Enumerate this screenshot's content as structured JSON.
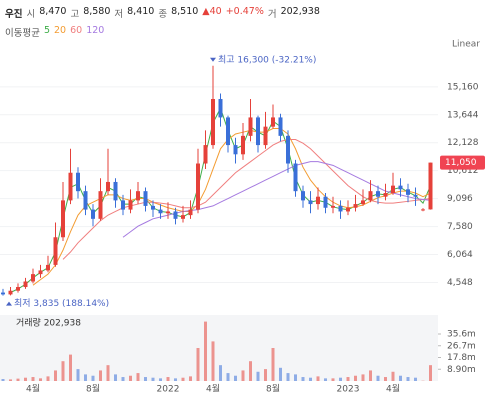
{
  "chart_data": {
    "type": "candlestick",
    "name": "우진",
    "quote": [
      {
        "label": "시",
        "value": 8470,
        "value_label": "8,470"
      },
      {
        "label": "고",
        "value": 8580,
        "value_label": "8,580"
      },
      {
        "label": "저",
        "value": 8410,
        "value_label": "8,410"
      },
      {
        "label": "종",
        "value": 8510,
        "value_label": "8,510"
      }
    ],
    "change": [
      {
        "value": 40,
        "label": "▲40"
      },
      {
        "value": 0.47,
        "label": "+0.47%"
      }
    ],
    "change_color": "#e5413a",
    "quote_volume": {
      "label": "거",
      "value": 202938,
      "value_label": "202,938"
    },
    "ma_label": "이동평균",
    "scale_label": "Linear",
    "categories": [
      null,
      null,
      null,
      null,
      "4월",
      null,
      null,
      null,
      null,
      null,
      null,
      null,
      "8월",
      null,
      null,
      null,
      null,
      null,
      null,
      null,
      null,
      null,
      "2022",
      null,
      null,
      null,
      null,
      null,
      "4월",
      null,
      null,
      null,
      null,
      null,
      null,
      null,
      "8월",
      null,
      null,
      null,
      null,
      null,
      null,
      null,
      null,
      null,
      "2023",
      null,
      null,
      null,
      null,
      null,
      "4월",
      null,
      null,
      null,
      null,
      null
    ],
    "open": [
      4000,
      3900,
      4100,
      4300,
      4600,
      5000,
      5200,
      5500,
      7000,
      9000,
      10500,
      9500,
      8500,
      8000,
      9500,
      10000,
      9000,
      8500,
      9000,
      9500,
      8700,
      8500,
      8300,
      8400,
      8000,
      8200,
      8500,
      11000,
      12000,
      14500,
      13500,
      12000,
      11500,
      12500,
      13500,
      12000,
      13000,
      13500,
      12500,
      11000,
      9500,
      9000,
      8800,
      9200,
      8600,
      8700,
      8400,
      8600,
      8800,
      9000,
      9500,
      9200,
      9400,
      9800,
      9600,
      9300,
      8470,
      8510
    ],
    "high": [
      4200,
      4300,
      4500,
      4800,
      5300,
      5500,
      6000,
      7800,
      10000,
      11800,
      10800,
      9800,
      8800,
      10200,
      11800,
      10200,
      9300,
      9600,
      10000,
      9700,
      9000,
      8800,
      8900,
      8600,
      8700,
      9000,
      11800,
      12800,
      16300,
      14800,
      13600,
      12400,
      13200,
      14500,
      13600,
      13800,
      14200,
      13700,
      12800,
      11200,
      9800,
      9500,
      9700,
      9400,
      9200,
      9000,
      9000,
      9300,
      9600,
      10100,
      9800,
      9900,
      10500,
      10200,
      9900,
      9700,
      8580,
      11050
    ],
    "low": [
      3835,
      3850,
      4000,
      4200,
      4500,
      4800,
      5100,
      5400,
      6800,
      8800,
      9100,
      8200,
      7600,
      7900,
      9300,
      8600,
      8200,
      8300,
      8800,
      8400,
      8100,
      8000,
      8000,
      7700,
      7800,
      8000,
      8300,
      10700,
      11800,
      13000,
      11600,
      11000,
      11200,
      12200,
      11600,
      11800,
      12900,
      12200,
      10500,
      9200,
      8600,
      8300,
      8500,
      8300,
      8300,
      8000,
      8200,
      8400,
      8700,
      8900,
      8800,
      9000,
      9300,
      9200,
      8900,
      8700,
      8410,
      8500
    ],
    "close": [
      3900,
      4100,
      4300,
      4600,
      5000,
      5200,
      5500,
      7000,
      9000,
      10500,
      9500,
      8500,
      8000,
      9500,
      10000,
      9000,
      8500,
      9000,
      9500,
      8700,
      8500,
      8300,
      8400,
      8000,
      8200,
      8500,
      11000,
      12000,
      14500,
      13500,
      12000,
      11500,
      12500,
      13500,
      12000,
      13000,
      13500,
      12500,
      11000,
      9500,
      9000,
      8800,
      9200,
      8600,
      8700,
      8400,
      8600,
      8800,
      9000,
      9500,
      9200,
      9400,
      9800,
      9600,
      9300,
      9200,
      8510,
      11050
    ],
    "up_color": "#e5413a",
    "down_color": "#3a6fd8",
    "ylim": [
      3000,
      17700
    ],
    "yticks": [
      {
        "value": 4548,
        "label": "4,548"
      },
      {
        "value": 6064,
        "label": "6,064"
      },
      {
        "value": 7580,
        "label": "7,580"
      },
      {
        "value": 9096,
        "label": "9,096"
      },
      {
        "value": 10612,
        "label": "10,612"
      },
      {
        "value": 12128,
        "label": "12,128"
      },
      {
        "value": 13644,
        "label": "13,644"
      },
      {
        "value": 15160,
        "label": "15,160"
      }
    ],
    "grid": true,
    "series": [
      {
        "name": "5",
        "color": "#3fae49",
        "values": [
          null,
          4000,
          4200,
          4450,
          4800,
          5100,
          5350,
          6200,
          8000,
          9700,
          9900,
          9000,
          8300,
          8700,
          9700,
          9500,
          8800,
          8800,
          9200,
          9100,
          8600,
          8400,
          8350,
          8200,
          8100,
          8350,
          9700,
          11500,
          13200,
          14000,
          12800,
          11800,
          12000,
          13000,
          12700,
          12500,
          13300,
          13000,
          11800,
          10200,
          9300,
          8900,
          9000,
          8900,
          8650,
          8550,
          8500,
          8700,
          8900,
          9200,
          9350,
          9300,
          9600,
          9700,
          9450,
          9250,
          8850,
          9800
        ]
      },
      {
        "name": "20",
        "color": "#f39c32",
        "values": [
          null,
          null,
          null,
          null,
          4400,
          4700,
          5000,
          5500,
          6300,
          7300,
          8200,
          8700,
          8900,
          9100,
          9300,
          9300,
          9100,
          9000,
          9100,
          9100,
          8900,
          8750,
          8600,
          8500,
          8400,
          8400,
          8800,
          9600,
          10700,
          11800,
          12300,
          12600,
          12700,
          12800,
          12700,
          12700,
          12900,
          12900,
          12600,
          11800,
          10800,
          10100,
          9600,
          9200,
          8900,
          8700,
          8600,
          8650,
          8750,
          8950,
          9150,
          9250,
          9400,
          9500,
          9500,
          9400,
          9200,
          9400
        ]
      },
      {
        "name": "60",
        "color": "#f07f7f",
        "values": [
          null,
          null,
          null,
          null,
          null,
          null,
          null,
          null,
          5800,
          6200,
          6700,
          7100,
          7500,
          7900,
          8200,
          8400,
          8600,
          8700,
          8800,
          8900,
          8900,
          8850,
          8800,
          8700,
          8600,
          8600,
          8700,
          8900,
          9300,
          9700,
          10100,
          10500,
          10800,
          11100,
          11400,
          11700,
          12000,
          12200,
          12300,
          12300,
          12100,
          11800,
          11400,
          11000,
          10600,
          10200,
          9800,
          9500,
          9200,
          9000,
          8900,
          8850,
          8850,
          8900,
          8950,
          9000,
          9050,
          9100
        ]
      },
      {
        "name": "120",
        "color": "#a57ae0",
        "values": [
          null,
          null,
          null,
          null,
          null,
          null,
          null,
          null,
          null,
          null,
          null,
          null,
          null,
          null,
          null,
          null,
          7000,
          7300,
          7600,
          7800,
          8000,
          8100,
          8200,
          8300,
          8400,
          8450,
          8500,
          8600,
          8700,
          8900,
          9100,
          9300,
          9500,
          9700,
          9900,
          10100,
          10300,
          10500,
          10700,
          10900,
          11000,
          11100,
          11100,
          11000,
          10900,
          10700,
          10500,
          10300,
          10100,
          9900,
          9700,
          9500,
          9400,
          9300,
          9200,
          9100,
          9050,
          9000
        ]
      }
    ],
    "annotations": [
      {
        "text": "최고 16,300 (-32.21%)"
      },
      {
        "text": "최저 3,835 (188.14%)"
      }
    ],
    "annotation_color": "#4a64c4",
    "last_price": {
      "value": 11050,
      "label": "11,050"
    },
    "last_price_color": "#f04452",
    "volume": {
      "title": "거래량 202,938",
      "values": [
        1500000,
        1200000,
        1800000,
        2500000,
        3000000,
        2000000,
        3500000,
        8000000,
        15000000,
        20000000,
        9000000,
        5000000,
        4000000,
        8000000,
        12000000,
        5000000,
        3000000,
        4000000,
        6000000,
        3000000,
        2500000,
        2000000,
        3000000,
        2000000,
        2500000,
        3500000,
        25000000,
        45000000,
        30000000,
        12000000,
        6000000,
        4000000,
        8000000,
        15000000,
        7000000,
        9000000,
        25000000,
        10000000,
        6000000,
        5000000,
        3000000,
        2500000,
        3500000,
        2000000,
        2000000,
        2500000,
        3000000,
        4000000,
        5000000,
        8000000,
        4000000,
        3000000,
        7000000,
        4000000,
        3000000,
        2500000,
        202938,
        12000000
      ],
      "ylim": [
        0,
        50000000
      ],
      "yticks": [
        {
          "value": 8900000,
          "label": "8.90m"
        },
        {
          "value": 17800000,
          "label": "17.8m"
        },
        {
          "value": 26700000,
          "label": "26.7m"
        },
        {
          "value": 35600000,
          "label": "35.6m"
        }
      ]
    }
  }
}
